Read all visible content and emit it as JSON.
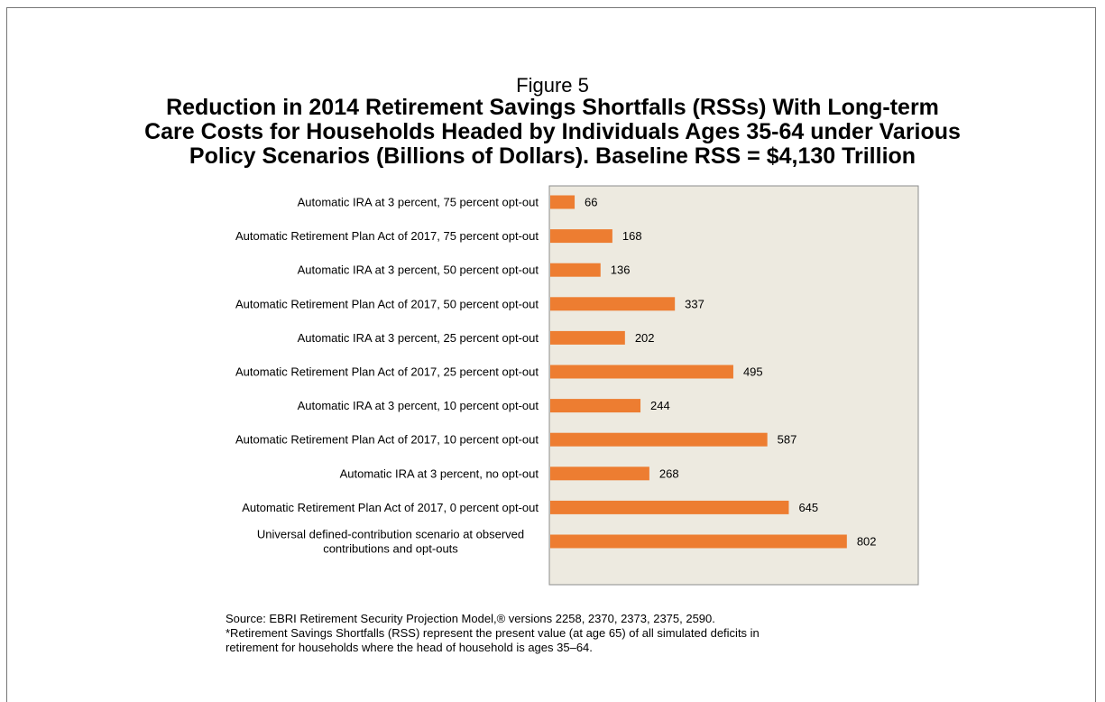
{
  "figure_label": "Figure 5",
  "title_lines": [
    "Reduction in 2014 Retirement Savings Shortfalls (RSSs) With Long-term",
    "Care Costs for Households Headed by Individuals Ages 35-64 under Various",
    "Policy Scenarios (Billions of Dollars). Baseline RSS = $4,130 Trillion"
  ],
  "colors": {
    "bar": "#ED7D31",
    "plot_bg": "#EDEAE0",
    "plot_border": "#8C8C8C"
  },
  "chart_data": {
    "type": "bar",
    "orientation": "horizontal",
    "categories": [
      "Automatic IRA at 3 percent, 75 percent opt-out",
      "Automatic Retirement Plan Act of 2017, 75 percent opt-out",
      "Automatic IRA at 3 percent, 50 percent opt-out",
      "Automatic Retirement Plan Act of 2017, 50 percent opt-out",
      "Automatic IRA at 3 percent, 25 percent opt-out",
      "Automatic Retirement Plan Act of 2017, 25 percent opt-out",
      "Automatic IRA at 3 percent, 10 percent opt-out",
      "Automatic Retirement Plan Act of 2017, 10 percent opt-out",
      "Automatic IRA at 3 percent, no opt-out",
      "Automatic Retirement Plan Act of 2017, 0 percent opt-out",
      "Universal defined-contribution scenario at observed contributions and opt-outs"
    ],
    "category_lines": [
      [
        "Automatic IRA at 3 percent, 75 percent opt-out"
      ],
      [
        "Automatic Retirement Plan Act of 2017, 75 percent opt-out"
      ],
      [
        "Automatic IRA at 3 percent, 50 percent opt-out"
      ],
      [
        "Automatic Retirement Plan Act of 2017, 50 percent opt-out"
      ],
      [
        "Automatic IRA at 3 percent, 25 percent opt-out"
      ],
      [
        "Automatic Retirement Plan Act of 2017, 25 percent opt-out"
      ],
      [
        "Automatic IRA at 3 percent, 10 percent opt-out"
      ],
      [
        "Automatic Retirement Plan Act of 2017, 10 percent opt-out"
      ],
      [
        "Automatic IRA at 3 percent, no opt-out"
      ],
      [
        "Automatic Retirement Plan Act of 2017, 0 percent opt-out"
      ],
      [
        "Universal defined-contribution scenario at observed",
        "contributions and opt-outs"
      ]
    ],
    "values": [
      66,
      168,
      136,
      337,
      202,
      495,
      244,
      587,
      268,
      645,
      802
    ],
    "data_labels": true,
    "xlim": [
      0,
      980
    ],
    "grid": false,
    "legend": "none"
  },
  "source_lines": [
    "Source: EBRI Retirement Security Projection Model,® versions 2258, 2370, 2373, 2375, 2590.",
    "*Retirement Savings Shortfalls (RSS) represent the present value (at age 65) of all simulated deficits in",
    "retirement for households where the head of household is ages 35–64."
  ]
}
